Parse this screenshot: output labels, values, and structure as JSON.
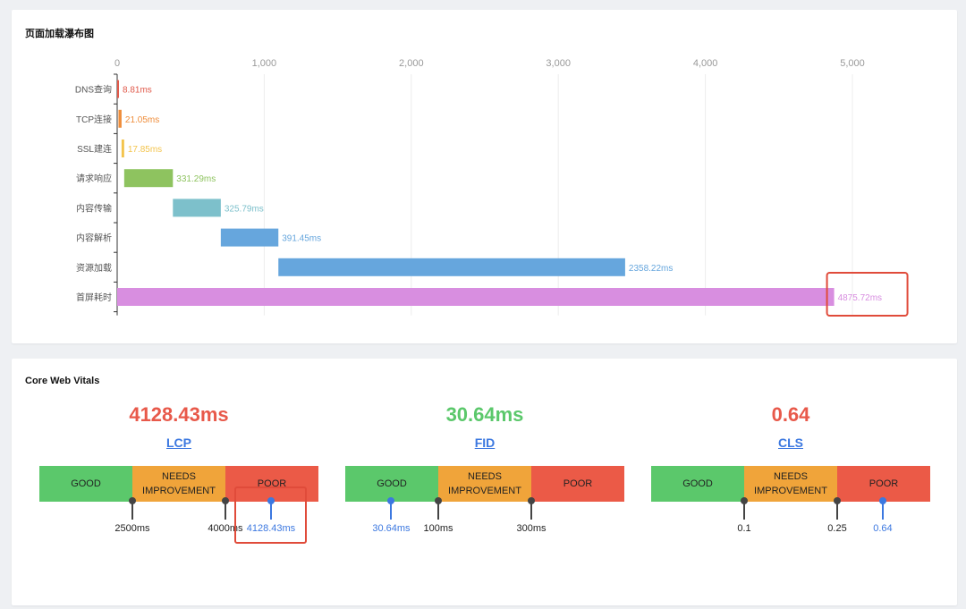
{
  "waterfall": {
    "title": "页面加载瀑布图",
    "chart_data": {
      "type": "bar",
      "orientation": "horizontal",
      "xlim": [
        0,
        5000
      ],
      "xticks": [
        0,
        1000,
        2000,
        3000,
        4000,
        5000
      ],
      "xtick_labels": [
        "0",
        "1,000",
        "2,000",
        "3,000",
        "4,000",
        "5,000"
      ],
      "grid": true,
      "categories": [
        "DNS查询",
        "TCP连接",
        "SSL建连",
        "请求响应",
        "内容传输",
        "内容解析",
        "资源加载",
        "首屏耗时"
      ],
      "series": [
        {
          "start": 0,
          "value": 8.81,
          "label": "8.81ms",
          "color": "#e0594a"
        },
        {
          "start": 8.81,
          "value": 21.05,
          "label": "21.05ms",
          "color": "#ef8d3a"
        },
        {
          "start": 29.86,
          "value": 17.85,
          "label": "17.85ms",
          "color": "#f3c44d"
        },
        {
          "start": 47.71,
          "value": 331.29,
          "label": "331.29ms",
          "color": "#8ec35f"
        },
        {
          "start": 379,
          "value": 325.79,
          "label": "325.79ms",
          "color": "#7dc0cb"
        },
        {
          "start": 704.79,
          "value": 391.45,
          "label": "391.45ms",
          "color": "#66a6dd"
        },
        {
          "start": 1096.24,
          "value": 2358.22,
          "label": "2358.22ms",
          "color": "#66a6dd"
        },
        {
          "start": 0,
          "value": 4875.72,
          "label": "4875.72ms",
          "color": "#d88ee0"
        }
      ],
      "highlight_index": 7
    }
  },
  "cwv": {
    "title": "Core Web Vitals",
    "metrics": [
      {
        "name": "LCP",
        "value": "4128.43ms",
        "value_color": "#e8594a",
        "segments": [
          "GOOD",
          "NEEDS IMPROVEMENT",
          "POOR"
        ],
        "thresholds": [
          "2500ms",
          "4000ms"
        ],
        "current": "4128.43ms",
        "current_position": 0.83,
        "highlighted": true
      },
      {
        "name": "FID",
        "value": "30.64ms",
        "value_color": "#5bc86b",
        "segments": [
          "GOOD",
          "NEEDS IMPROVEMENT",
          "POOR"
        ],
        "thresholds": [
          "100ms",
          "300ms"
        ],
        "current": "30.64ms",
        "current_position": 0.165,
        "highlighted": false
      },
      {
        "name": "CLS",
        "value": "0.64",
        "value_color": "#e8594a",
        "segments": [
          "GOOD",
          "NEEDS IMPROVEMENT",
          "POOR"
        ],
        "thresholds": [
          "0.1",
          "0.25"
        ],
        "current": "0.64",
        "current_position": 0.83,
        "highlighted": false
      }
    ]
  }
}
